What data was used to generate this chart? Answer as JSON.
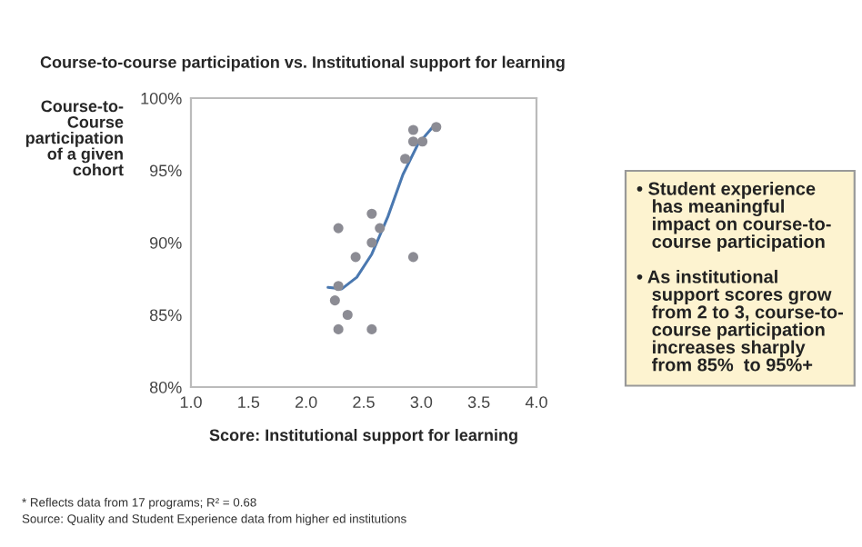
{
  "chart_data": {
    "type": "scatter",
    "title": "Course-to-course participation vs. Institutional support for learning",
    "xlabel": "Score: Institutional support for learning",
    "ylabel": "Course-to-\nCourse\nparticipation\nof a given\ncohort",
    "series": [
      {
        "color": "#8c8c94",
        "marker": "circle",
        "x": [
          2.28,
          2.57,
          2.64,
          2.57,
          2.43,
          2.93,
          2.28,
          2.25,
          2.36,
          2.28,
          2.57,
          2.93,
          2.93,
          3.01,
          2.86,
          3.13
        ],
        "values": [
          91.0,
          92.0,
          91.0,
          90.0,
          89.0,
          89.0,
          87.0,
          86.0,
          85.0,
          84.0,
          84.0,
          97.8,
          97.0,
          97.0,
          95.8,
          98.0
        ]
      },
      {
        "type": "line",
        "color": "#4a78b0",
        "x": [
          2.19,
          2.31,
          2.44,
          2.57,
          2.71,
          2.84,
          2.97,
          3.11
        ],
        "values": [
          86.9,
          86.8,
          87.6,
          89.2,
          91.8,
          94.7,
          96.8,
          98.1
        ]
      }
    ],
    "xlim": [
      1.0,
      4.0
    ],
    "xticks": [
      {
        "value": 1.0,
        "label": "1.0"
      },
      {
        "value": 1.5,
        "label": "1.5"
      },
      {
        "value": 2.0,
        "label": "2.0"
      },
      {
        "value": 2.5,
        "label": "2.5"
      },
      {
        "value": 3.0,
        "label": "3.0"
      },
      {
        "value": 3.5,
        "label": "3.5"
      },
      {
        "value": 4.0,
        "label": "4.0"
      }
    ],
    "ylim": [
      80,
      100
    ],
    "yticks": [
      {
        "value": 80,
        "label": "80%"
      },
      {
        "value": 85,
        "label": "85%"
      },
      {
        "value": 90,
        "label": "90%"
      },
      {
        "value": 95,
        "label": "95%"
      },
      {
        "value": 100,
        "label": "100%"
      }
    ],
    "grid": false,
    "annotations": [
      "• Student experience\n   has meaningful\n   impact on course-to-\n   course participation\n\n• As institutional\n   support scores grow\n   from 2 to 3, course-to-\n   course participation\n   increases sharply\n   from 85%  to 95%+",
      "* Reflects data from 17 programs; R² = 0.68",
      "Source: Quality and Student Experience data from higher ed institutions"
    ]
  }
}
